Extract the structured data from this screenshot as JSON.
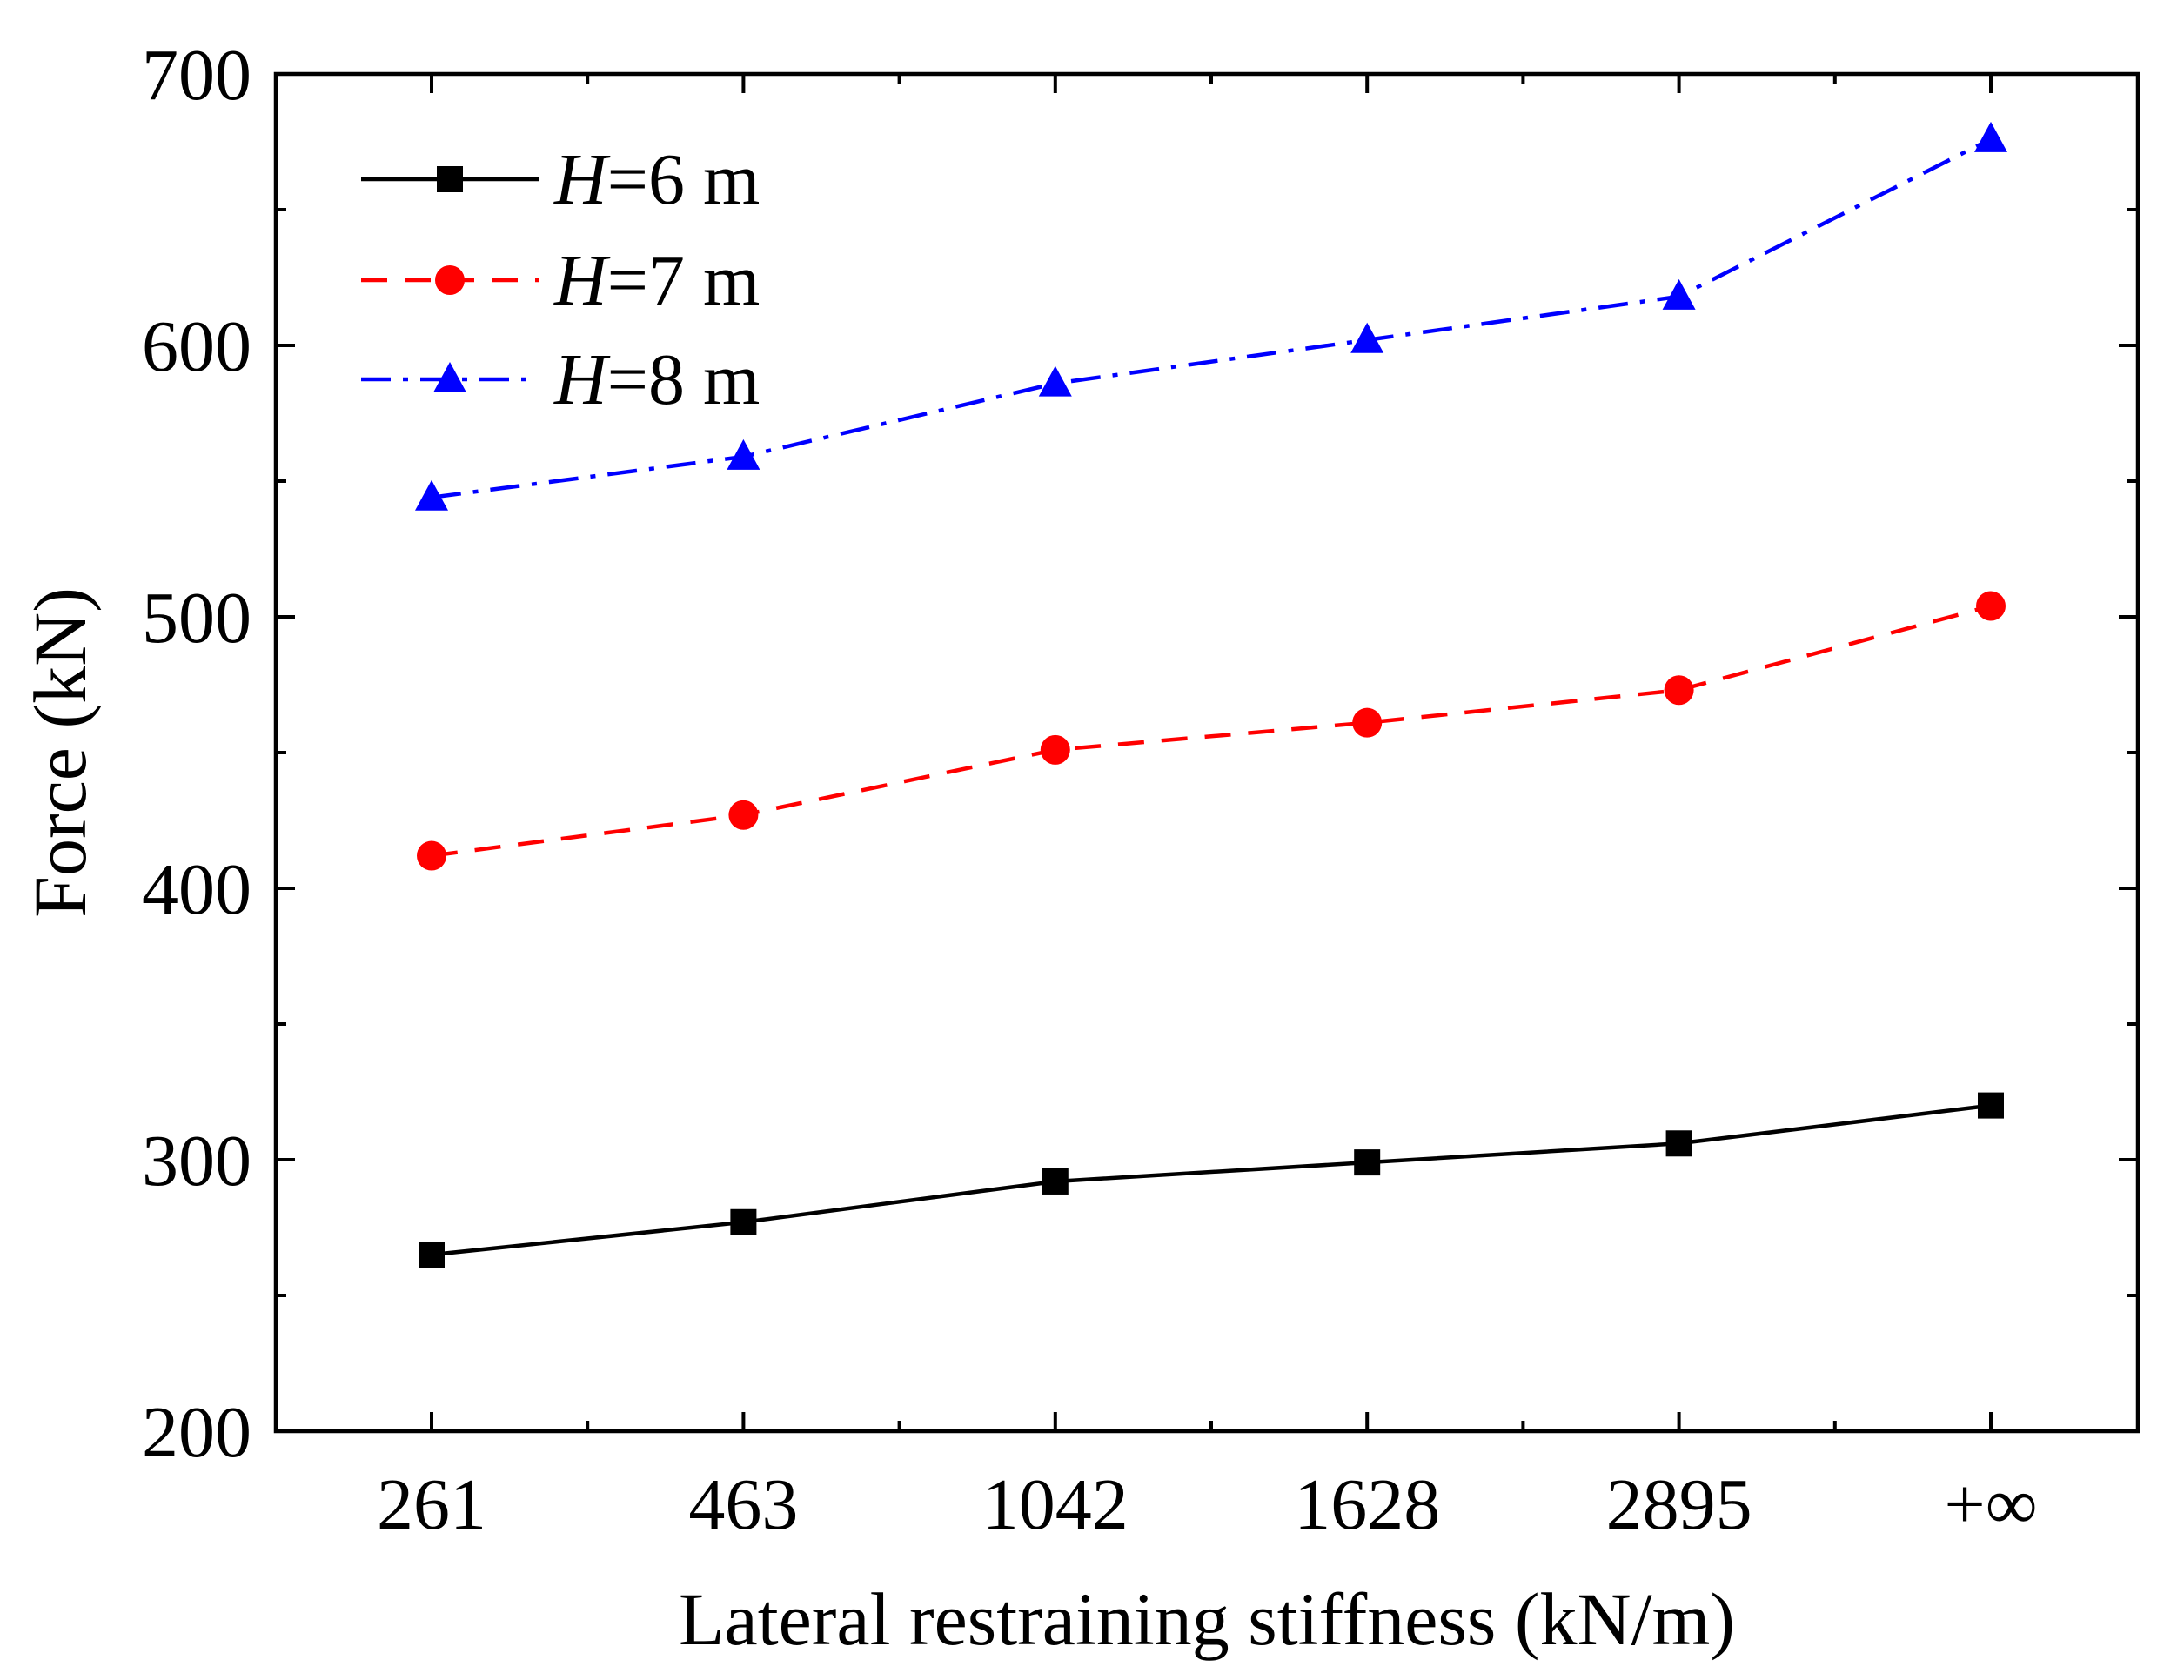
{
  "chart_data": {
    "type": "line",
    "xlabel": "Lateral restraining stiffness (kN/m)",
    "ylabel": "Force (kN)",
    "categories": [
      "261",
      "463",
      "1042",
      "1628",
      "2895",
      "+∞"
    ],
    "ylim": [
      200,
      700
    ],
    "yticks": [
      "200",
      "300",
      "400",
      "500",
      "600",
      "700"
    ],
    "legend_position": "top-left",
    "grid": false,
    "series": [
      {
        "name": "=6 m",
        "name_italic": "H",
        "values": [
          265,
          277,
          292,
          299,
          306,
          320
        ],
        "color": "#000000",
        "marker": "square",
        "dash": "solid"
      },
      {
        "name": "=7 m",
        "name_italic": "H",
        "values": [
          412,
          427,
          451,
          461,
          473,
          504
        ],
        "color": "#ff0000",
        "marker": "circle",
        "dash": "dash"
      },
      {
        "name": "=8 m",
        "name_italic": "H",
        "values": [
          544,
          559,
          586,
          602,
          618,
          676
        ],
        "color": "#0000ff",
        "marker": "triangle",
        "dash": "dashdot"
      }
    ]
  }
}
